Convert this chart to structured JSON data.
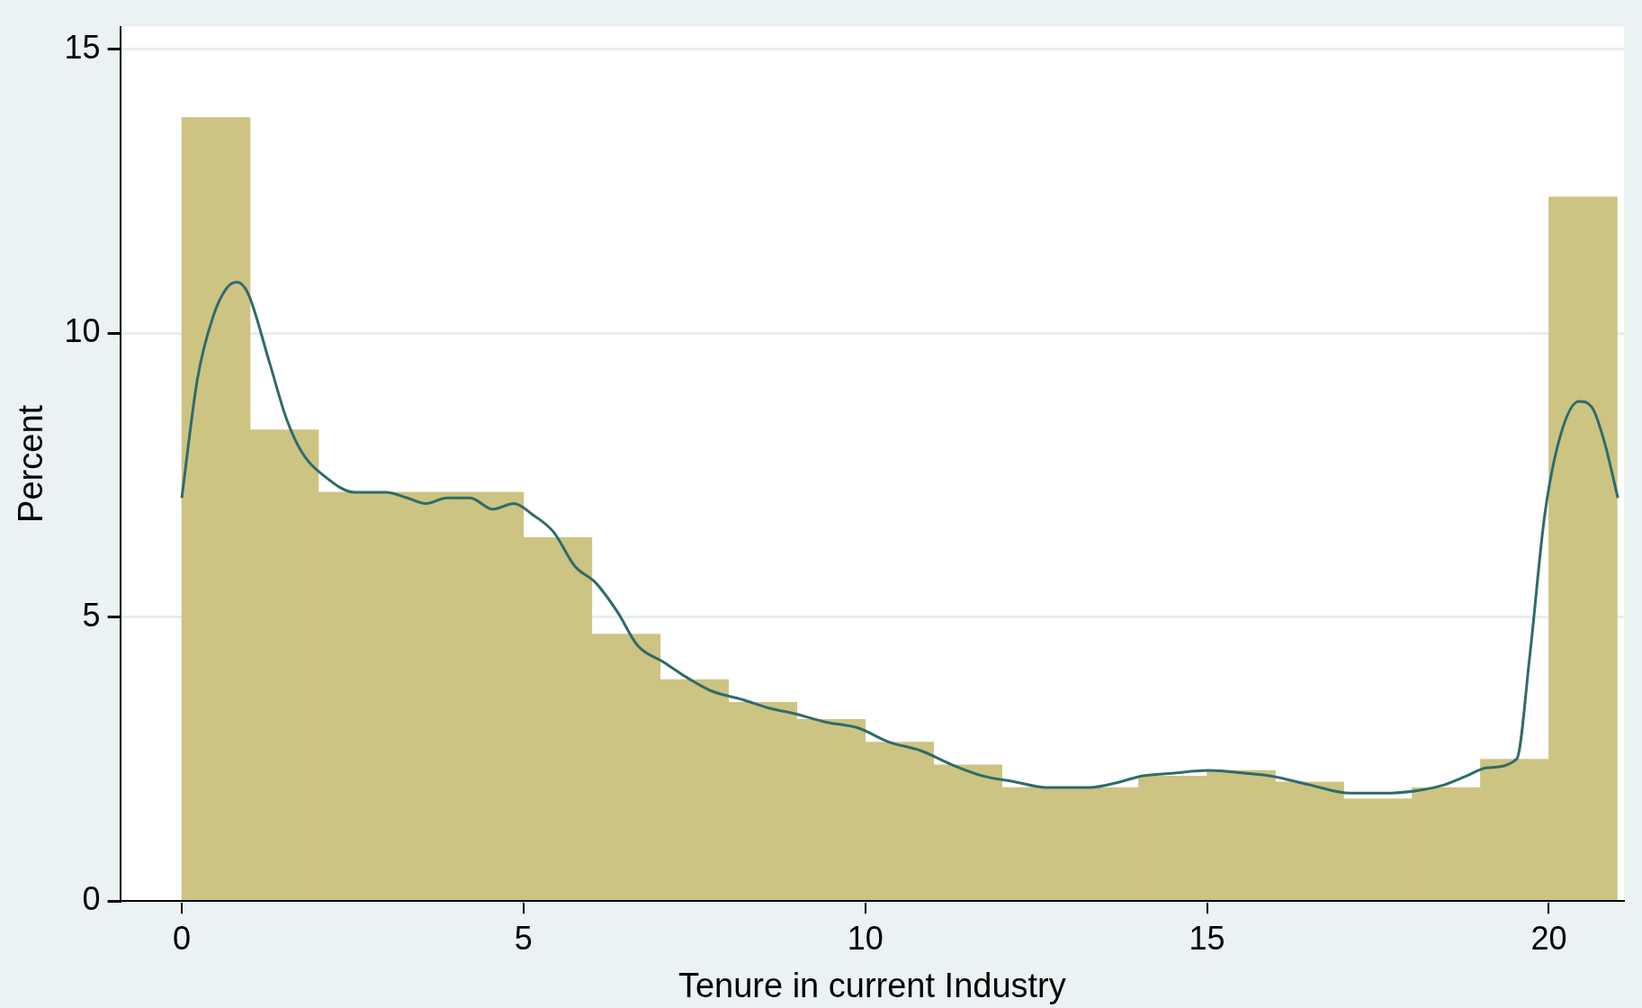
{
  "chart_data": {
    "type": "histogram",
    "xlabel": "Tenure in current Industry",
    "ylabel": "Percent",
    "bins": [
      0,
      1,
      2,
      3,
      4,
      5,
      6,
      7,
      8,
      9,
      10,
      11,
      12,
      13,
      14,
      15,
      16,
      17,
      18,
      19,
      20,
      21
    ],
    "values": [
      13.8,
      8.3,
      7.2,
      7.2,
      7.2,
      6.4,
      4.7,
      3.9,
      3.5,
      3.2,
      2.8,
      2.4,
      2.0,
      2.0,
      2.2,
      2.3,
      2.1,
      1.8,
      2.0,
      2.5,
      12.4
    ],
    "color": "#cdc382",
    "series": [
      {
        "type": "line",
        "color": "#2e6b6b",
        "x": [
          0,
          0.23,
          0.46,
          0.66,
          0.81,
          0.97,
          1.28,
          1.53,
          1.76,
          2.07,
          2.53,
          2.99,
          3.3,
          3.57,
          3.88,
          4.22,
          4.55,
          4.86,
          5.14,
          5.44,
          5.75,
          6.06,
          6.37,
          6.67,
          7.06,
          7.44,
          7.75,
          8.2,
          8.59,
          8.97,
          9.43,
          9.89,
          10.35,
          10.81,
          11.27,
          11.73,
          12.19,
          12.65,
          13.27,
          13.73,
          14.03,
          14.49,
          15.03,
          15.57,
          15.95,
          16.49,
          17.1,
          17.56,
          18.1,
          18.48,
          18.79,
          19.1,
          19.53,
          19.72,
          19.94,
          20.17,
          20.44,
          20.63,
          20.81,
          21.01
        ],
        "values": [
          7.1,
          9.2,
          10.3,
          10.8,
          10.9,
          10.7,
          9.5,
          8.5,
          7.9,
          7.5,
          7.2,
          7.2,
          7.1,
          7.0,
          7.1,
          7.1,
          6.9,
          7.0,
          6.8,
          6.5,
          5.9,
          5.6,
          5.1,
          4.5,
          4.2,
          3.9,
          3.7,
          3.55,
          3.4,
          3.3,
          3.15,
          3.05,
          2.8,
          2.65,
          2.4,
          2.2,
          2.1,
          2.0,
          2.0,
          2.1,
          2.2,
          2.25,
          2.3,
          2.25,
          2.2,
          2.05,
          1.9,
          1.9,
          1.95,
          2.05,
          2.2,
          2.35,
          2.5,
          4.3,
          6.8,
          8.2,
          8.8,
          8.7,
          8.1,
          7.1
        ]
      }
    ],
    "xlim": [
      -0.9,
      21.1
    ],
    "xticks": [
      0,
      5,
      10,
      15,
      20
    ],
    "ylim": [
      0,
      15.4
    ],
    "yticks": [
      0,
      5,
      10,
      15
    ],
    "grid": "y",
    "legend": false
  }
}
